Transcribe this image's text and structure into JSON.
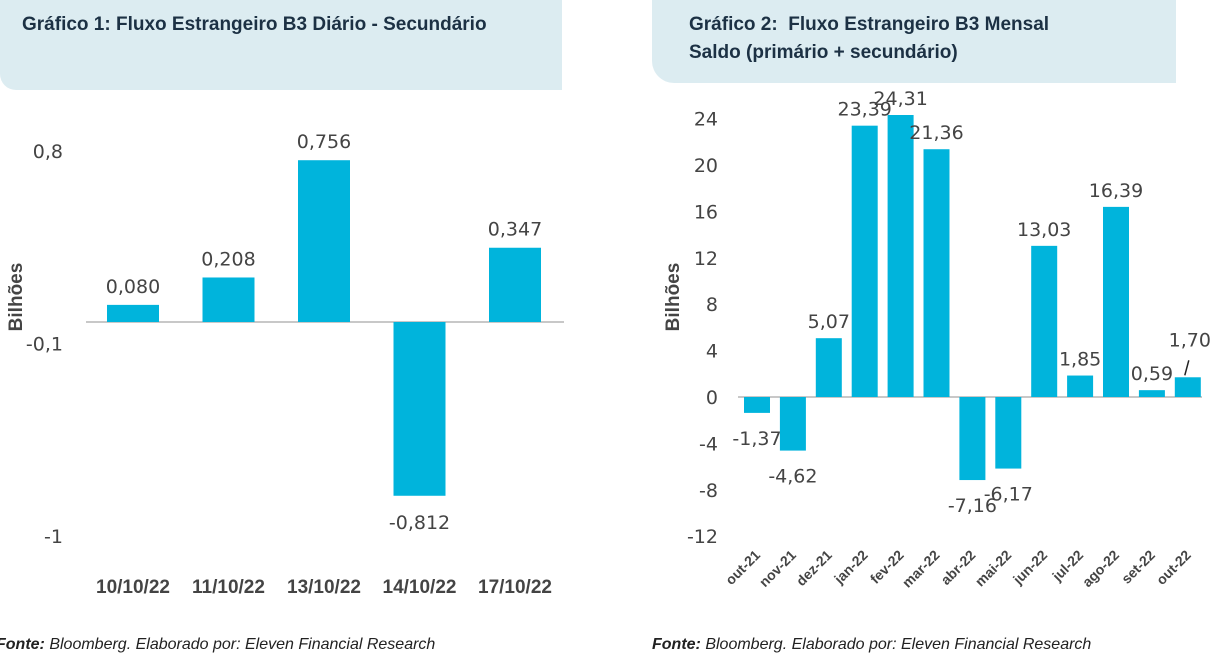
{
  "charts_meta": {
    "accent": "#00b4dc",
    "header_bg": "#dcecf1",
    "title_color": "#1c3144"
  },
  "chart1": {
    "title": "Gráfico 1: Fluxo Estrangeiro B3 Diário - Secundário",
    "source_prefix": "Fonte:",
    "source_text": " Bloomberg. Elaborado por: Eleven Financial Research"
  },
  "chart2": {
    "title_line1": "Gráfico 2:  Fluxo Estrangeiro B3 Mensal",
    "title_line2": "Saldo (primário + secundário)",
    "source_prefix": "Fonte:",
    "source_text": " Bloomberg. Elaborado por: Eleven Financial Research"
  },
  "chart_data": [
    {
      "type": "bar",
      "title": "Gráfico 1: Fluxo Estrangeiro B3 Diário - Secundário",
      "categories": [
        "10/10/22",
        "11/10/22",
        "13/10/22",
        "14/10/22",
        "17/10/22"
      ],
      "values": [
        0.08,
        0.208,
        0.756,
        -0.812,
        0.347
      ],
      "value_labels": [
        "0,080",
        "0,208",
        "0,756",
        "-0,812",
        "0,347"
      ],
      "ylabel": "Bilhões",
      "xlabel": "",
      "yticks": [
        "0,8",
        "-0,1",
        "-1"
      ],
      "ytick_values": [
        0.8,
        -0.1,
        -1
      ],
      "ylim": [
        -1,
        0.8
      ],
      "grid": false,
      "color": "#00b4dc"
    },
    {
      "type": "bar",
      "title": "Gráfico 2: Fluxo Estrangeiro B3 Mensal Saldo (primário + secundário)",
      "categories": [
        "out-21",
        "nov-21",
        "dez-21",
        "jan-22",
        "fev-22",
        "mar-22",
        "abr-22",
        "mai-22",
        "jun-22",
        "jul-22",
        "ago-22",
        "set-22",
        "out-22"
      ],
      "values": [
        -1.37,
        -4.62,
        5.07,
        23.39,
        24.31,
        21.36,
        -7.16,
        -6.17,
        13.03,
        1.85,
        16.39,
        0.59,
        1.7
      ],
      "value_labels": [
        "-1,37",
        "-4,62",
        "5,07",
        "23,39",
        "24,31",
        "21,36",
        "-7,16",
        "-6,17",
        "13,03",
        "1,85",
        "16,39",
        "0,59",
        "1,70"
      ],
      "ylabel": "Bilhões",
      "xlabel": "",
      "yticks": [
        "24",
        "20",
        "16",
        "12",
        "8",
        "4",
        "0",
        "-4",
        "-8",
        "-12"
      ],
      "ytick_values": [
        24,
        20,
        16,
        12,
        8,
        4,
        0,
        -4,
        -8,
        -12
      ],
      "ylim": [
        -12,
        24
      ],
      "grid": false,
      "color": "#00b4dc"
    }
  ]
}
